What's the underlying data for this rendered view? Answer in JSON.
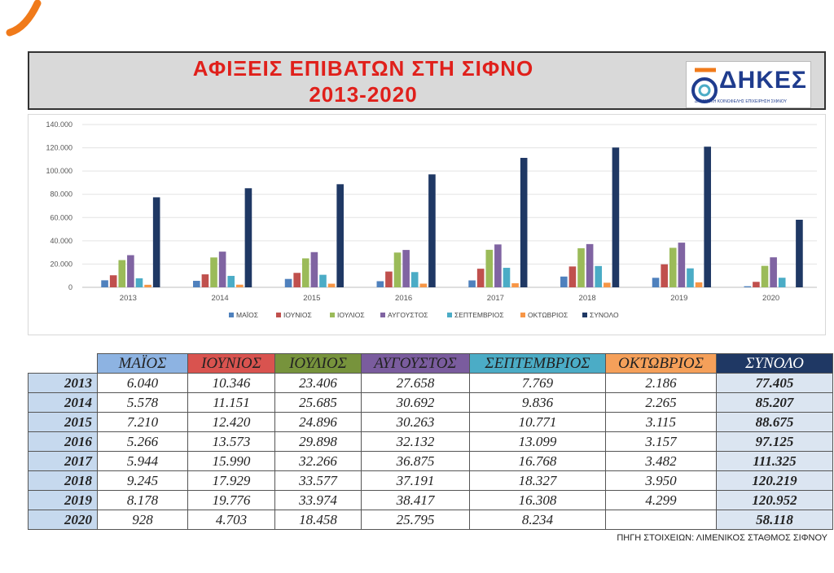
{
  "header": {
    "title_line1": "ΑΦΙΞΕΙΣ ΕΠΙΒΑΤΩΝ ΣΤΗ ΣΙΦΝΟ",
    "title_line2": "2013-2020",
    "title_color": "#e0201b",
    "logo_text": "ΔΗΚΕΣ",
    "logo_subtitle": "ΔΗΜΟΤΙΚΗ ΚΟΙΝΩΦΕΛΗΣ ΕΠΙΧΕΙΡΗΣΗ ΣΙΦΝΟΥ"
  },
  "chart_data": {
    "type": "bar",
    "categories": [
      "2013",
      "2014",
      "2015",
      "2016",
      "2017",
      "2018",
      "2019",
      "2020"
    ],
    "ylim": [
      0,
      140000
    ],
    "yticks": [
      0,
      20000,
      40000,
      60000,
      80000,
      100000,
      120000,
      140000
    ],
    "ytick_labels": [
      "0",
      "20.000",
      "40.000",
      "60.000",
      "80.000",
      "100.000",
      "120.000",
      "140.000"
    ],
    "grid": true,
    "legend_position": "bottom",
    "series": [
      {
        "name": "ΜΑΪΟΣ",
        "color": "#4f81bd",
        "values": [
          6040,
          5578,
          7210,
          5266,
          5944,
          9245,
          8178,
          928
        ]
      },
      {
        "name": "ΙΟΥΝΙΟΣ",
        "color": "#c0504d",
        "values": [
          10346,
          11151,
          12420,
          13573,
          15990,
          17929,
          19776,
          4703
        ]
      },
      {
        "name": "ΙΟΥΛΙΟΣ",
        "color": "#9bbb59",
        "values": [
          23406,
          25685,
          24896,
          29898,
          32266,
          33577,
          33974,
          18458
        ]
      },
      {
        "name": "ΑΥΓΟΥΣΤΟΣ",
        "color": "#8064a2",
        "values": [
          27658,
          30692,
          30263,
          32132,
          36875,
          37191,
          38417,
          25795
        ]
      },
      {
        "name": "ΣΕΠΤΕΜΒΡΙΟΣ",
        "color": "#4bacc6",
        "values": [
          7769,
          9836,
          10771,
          13099,
          16768,
          18327,
          16308,
          8234
        ]
      },
      {
        "name": "ΟΚΤΩΒΡΙΟΣ",
        "color": "#f79646",
        "values": [
          2186,
          2265,
          3115,
          3157,
          3482,
          3950,
          4299,
          null
        ]
      },
      {
        "name": "ΣΥΝΟΛΟ",
        "color": "#1f3864",
        "values": [
          77405,
          85207,
          88675,
          97125,
          111325,
          120219,
          120952,
          58118
        ]
      }
    ]
  },
  "table": {
    "headers": [
      {
        "label": "ΜΑΪΟΣ",
        "color": "#8db3e2"
      },
      {
        "label": "ΙΟΥΝΙΟΣ",
        "color": "#d9534f"
      },
      {
        "label": "ΙΟΥΛΙΟΣ",
        "color": "#77933c"
      },
      {
        "label": "ΑΥΓΟΥΣΤΟΣ",
        "color": "#7a5c9e"
      },
      {
        "label": "ΣΕΠΤΕΜΒΡΙΟΣ",
        "color": "#4bacc6"
      },
      {
        "label": "ΟΚΤΩΒΡΙΟΣ",
        "color": "#f5a05a"
      },
      {
        "label": "ΣΥΝΟΛΟ",
        "color": "#1f3864"
      }
    ],
    "rows": [
      {
        "year": "2013",
        "cells": [
          "6.040",
          "10.346",
          "23.406",
          "27.658",
          "7.769",
          "2.186",
          "77.405"
        ]
      },
      {
        "year": "2014",
        "cells": [
          "5.578",
          "11.151",
          "25.685",
          "30.692",
          "9.836",
          "2.265",
          "85.207"
        ]
      },
      {
        "year": "2015",
        "cells": [
          "7.210",
          "12.420",
          "24.896",
          "30.263",
          "10.771",
          "3.115",
          "88.675"
        ]
      },
      {
        "year": "2016",
        "cells": [
          "5.266",
          "13.573",
          "29.898",
          "32.132",
          "13.099",
          "3.157",
          "97.125"
        ]
      },
      {
        "year": "2017",
        "cells": [
          "5.944",
          "15.990",
          "32.266",
          "36.875",
          "16.768",
          "3.482",
          "111.325"
        ]
      },
      {
        "year": "2018",
        "cells": [
          "9.245",
          "17.929",
          "33.577",
          "37.191",
          "18.327",
          "3.950",
          "120.219"
        ]
      },
      {
        "year": "2019",
        "cells": [
          "8.178",
          "19.776",
          "33.974",
          "38.417",
          "16.308",
          "4.299",
          "120.952"
        ]
      },
      {
        "year": "2020",
        "cells": [
          "928",
          "4.703",
          "18.458",
          "25.795",
          "8.234",
          "",
          "58.118"
        ]
      }
    ]
  },
  "footer": {
    "source": "ΠΗΓΗ ΣΤΟΙΧΕΙΩΝ: ΛΙΜΕΝΙΚΟΣ ΣΤΑΘΜΟΣ ΣΙΦΝΟΥ"
  }
}
